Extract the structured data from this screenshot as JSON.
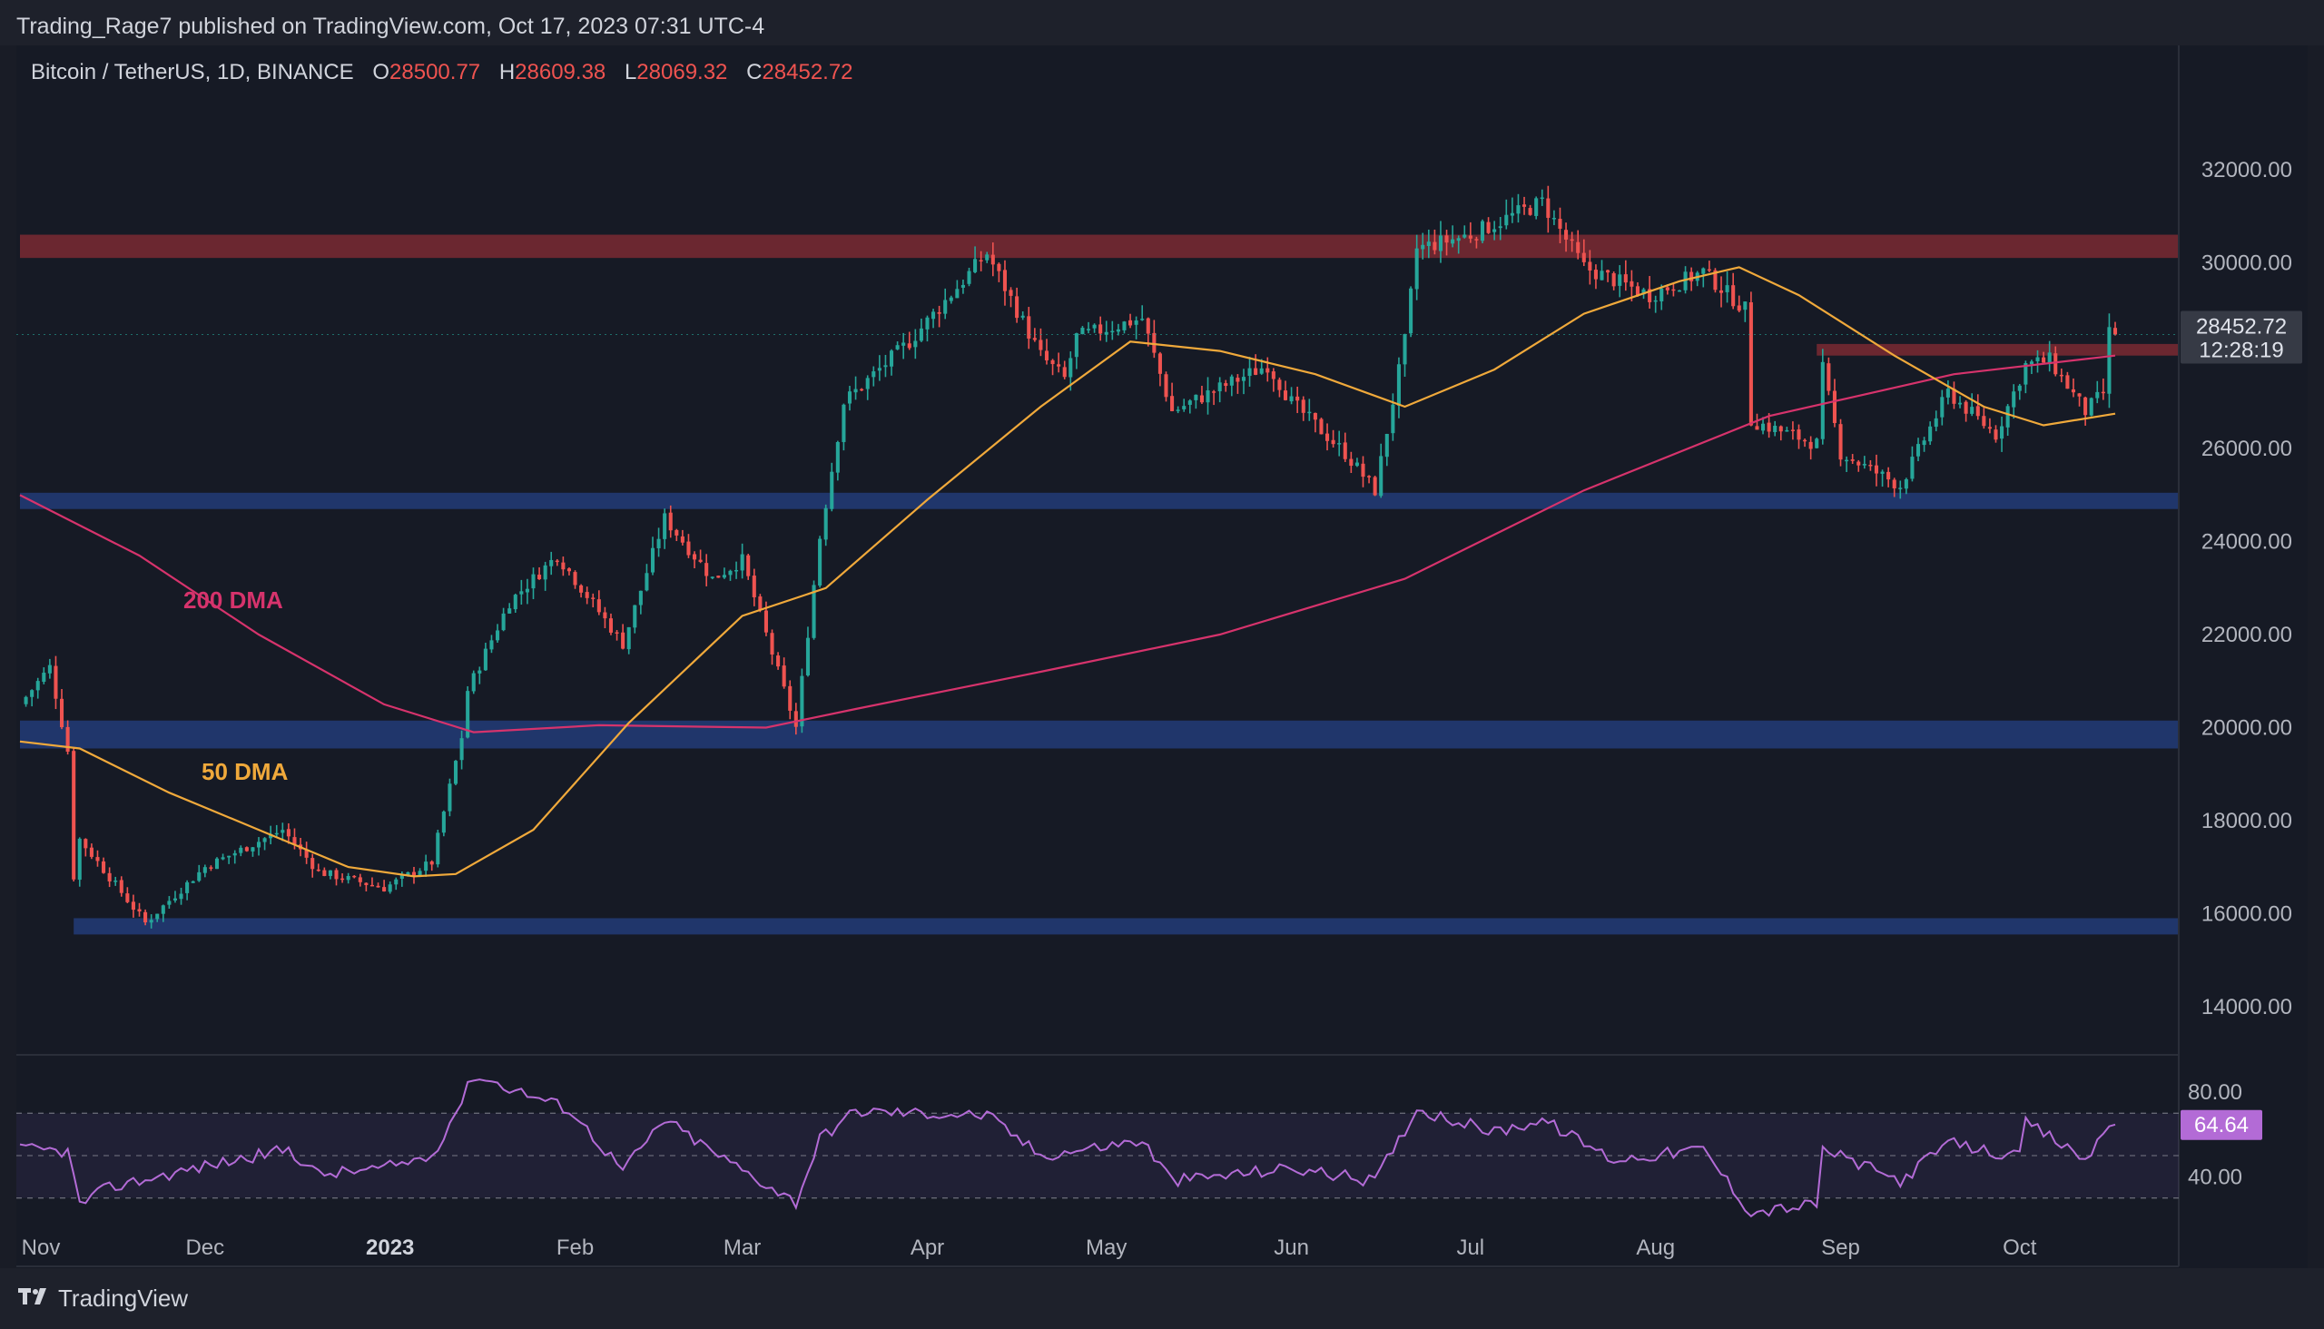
{
  "header": {
    "published": "Trading_Rage7 published on TradingView.com, Oct 17, 2023 07:31 UTC-4"
  },
  "symbol": {
    "name": "Bitcoin / TetherUS, 1D, BINANCE",
    "open_label": "O",
    "open": "28500.77",
    "high_label": "H",
    "high": "28609.38",
    "low_label": "L",
    "low": "28069.32",
    "close_label": "C",
    "close": "28452.72"
  },
  "price_tag": {
    "price": "28452.72",
    "countdown": "12:28:19"
  },
  "rsi_tag": {
    "value": "64.64"
  },
  "annotations": {
    "dma200": "200 DMA",
    "dma50": "50 DMA"
  },
  "footer": {
    "brand": "TradingView"
  },
  "colors": {
    "up": "#26a69a",
    "down": "#ef5350",
    "dma50": "#f0a93b",
    "dma200": "#d6336c",
    "rsi": "#b36bd6",
    "resistance": "#7a2a33",
    "support": "#213a73"
  },
  "chart_data": [
    {
      "type": "candlestick",
      "title": "Bitcoin / TetherUS, 1D, BINANCE",
      "x_range": [
        "2022-10-31",
        "2023-10-17"
      ],
      "ylim": [
        13000,
        33500
      ],
      "y_ticks": [
        "32000.00",
        "30000.00",
        "26000.00",
        "24000.00",
        "22000.00",
        "20000.00",
        "18000.00",
        "16000.00",
        "14000.00"
      ],
      "x_tick_labels": [
        {
          "label": "Nov",
          "date": "2022-11-01",
          "bold": false
        },
        {
          "label": "Dec",
          "date": "2022-12-01",
          "bold": false
        },
        {
          "label": "2023",
          "date": "2023-01-01",
          "bold": true
        },
        {
          "label": "Feb",
          "date": "2023-02-01",
          "bold": false
        },
        {
          "label": "Mar",
          "date": "2023-03-01",
          "bold": false
        },
        {
          "label": "Apr",
          "date": "2023-04-01",
          "bold": false
        },
        {
          "label": "May",
          "date": "2023-05-01",
          "bold": false
        },
        {
          "label": "Jun",
          "date": "2023-06-01",
          "bold": false
        },
        {
          "label": "Jul",
          "date": "2023-07-01",
          "bold": false
        },
        {
          "label": "Aug",
          "date": "2023-08-01",
          "bold": false
        },
        {
          "label": "Sep",
          "date": "2023-09-01",
          "bold": false
        },
        {
          "label": "Oct",
          "date": "2023-10-01",
          "bold": false
        }
      ],
      "zones": [
        {
          "kind": "resistance",
          "from": 30100,
          "to": 30600,
          "start": "2022-10-31"
        },
        {
          "kind": "resistance",
          "from": 28000,
          "to": 28250,
          "start": "2023-08-28"
        },
        {
          "kind": "support",
          "from": 24700,
          "to": 25050,
          "start": "2022-10-31"
        },
        {
          "kind": "support",
          "from": 19550,
          "to": 20150,
          "start": "2022-10-31"
        },
        {
          "kind": "support",
          "from": 15550,
          "to": 15900,
          "start": "2022-11-09"
        }
      ],
      "price_anchors": [
        [
          "2022-10-31",
          20500
        ],
        [
          "2022-11-05",
          21300
        ],
        [
          "2022-11-08",
          19500
        ],
        [
          "2022-11-09",
          16800
        ],
        [
          "2022-11-10",
          17600
        ],
        [
          "2022-11-21",
          15800
        ],
        [
          "2022-12-01",
          17000
        ],
        [
          "2022-12-14",
          17800
        ],
        [
          "2022-12-20",
          16900
        ],
        [
          "2022-12-31",
          16550
        ],
        [
          "2023-01-08",
          17100
        ],
        [
          "2023-01-13",
          19800
        ],
        [
          "2023-01-14",
          20800
        ],
        [
          "2023-01-21",
          22700
        ],
        [
          "2023-01-29",
          23700
        ],
        [
          "2023-02-09",
          21800
        ],
        [
          "2023-02-16",
          24500
        ],
        [
          "2023-02-24",
          23200
        ],
        [
          "2023-03-01",
          23600
        ],
        [
          "2023-03-10",
          20000
        ],
        [
          "2023-03-14",
          24100
        ],
        [
          "2023-03-18",
          27000
        ],
        [
          "2023-03-29",
          28300
        ],
        [
          "2023-04-11",
          30200
        ],
        [
          "2023-04-20",
          28000
        ],
        [
          "2023-04-24",
          27500
        ],
        [
          "2023-04-26",
          28400
        ],
        [
          "2023-05-07",
          28800
        ],
        [
          "2023-05-12",
          26800
        ],
        [
          "2023-05-28",
          27800
        ],
        [
          "2023-06-01",
          27000
        ],
        [
          "2023-06-10",
          25900
        ],
        [
          "2023-06-15",
          25100
        ],
        [
          "2023-06-20",
          28300
        ],
        [
          "2023-06-22",
          30300
        ],
        [
          "2023-07-01",
          30600
        ],
        [
          "2023-07-13",
          31300
        ],
        [
          "2023-07-20",
          29900
        ],
        [
          "2023-07-31",
          29300
        ],
        [
          "2023-08-09",
          29800
        ],
        [
          "2023-08-16",
          29000
        ],
        [
          "2023-08-17",
          26600
        ],
        [
          "2023-08-28",
          26100
        ],
        [
          "2023-08-29",
          27700
        ],
        [
          "2023-09-01",
          25900
        ],
        [
          "2023-09-11",
          25200
        ],
        [
          "2023-09-19",
          27200
        ],
        [
          "2023-09-27",
          26300
        ],
        [
          "2023-10-02",
          27800
        ],
        [
          "2023-10-06",
          27900
        ],
        [
          "2023-10-12",
          26800
        ],
        [
          "2023-10-15",
          27200
        ],
        [
          "2023-10-16",
          28500
        ],
        [
          "2023-10-17",
          28452.72
        ]
      ],
      "dma50": [
        [
          "2022-10-31",
          19700
        ],
        [
          "2022-11-10",
          19550
        ],
        [
          "2022-11-25",
          18600
        ],
        [
          "2022-12-10",
          17800
        ],
        [
          "2022-12-25",
          17000
        ],
        [
          "2023-01-05",
          16800
        ],
        [
          "2023-01-12",
          16850
        ],
        [
          "2023-01-25",
          17800
        ],
        [
          "2023-02-10",
          20100
        ],
        [
          "2023-03-01",
          22400
        ],
        [
          "2023-03-15",
          23000
        ],
        [
          "2023-04-01",
          24900
        ],
        [
          "2023-04-20",
          26900
        ],
        [
          "2023-05-05",
          28300
        ],
        [
          "2023-05-20",
          28100
        ],
        [
          "2023-06-05",
          27600
        ],
        [
          "2023-06-20",
          26900
        ],
        [
          "2023-07-05",
          27700
        ],
        [
          "2023-07-20",
          28900
        ],
        [
          "2023-08-05",
          29600
        ],
        [
          "2023-08-15",
          29900
        ],
        [
          "2023-08-25",
          29300
        ],
        [
          "2023-09-10",
          28000
        ],
        [
          "2023-09-25",
          26900
        ],
        [
          "2023-10-05",
          26500
        ],
        [
          "2023-10-17",
          26750
        ]
      ],
      "dma200": [
        [
          "2022-10-31",
          25000
        ],
        [
          "2022-11-20",
          23700
        ],
        [
          "2022-12-10",
          22000
        ],
        [
          "2022-12-31",
          20500
        ],
        [
          "2023-01-15",
          19900
        ],
        [
          "2023-02-05",
          20050
        ],
        [
          "2023-03-05",
          20000
        ],
        [
          "2023-03-20",
          20400
        ],
        [
          "2023-04-20",
          21200
        ],
        [
          "2023-05-20",
          22000
        ],
        [
          "2023-06-20",
          23200
        ],
        [
          "2023-07-20",
          25100
        ],
        [
          "2023-08-20",
          26700
        ],
        [
          "2023-09-20",
          27600
        ],
        [
          "2023-10-17",
          28000
        ]
      ]
    },
    {
      "type": "line",
      "title": "RSI",
      "ylim": [
        20,
        95
      ],
      "y_ticks": [
        "80.00",
        "40.00"
      ],
      "bands": [
        70,
        50,
        30
      ],
      "series": [
        {
          "values": [
            [
              "2022-10-31",
              53
            ],
            [
              "2022-11-08",
              52
            ],
            [
              "2022-11-10",
              27
            ],
            [
              "2022-11-15",
              35
            ],
            [
              "2022-12-01",
              45
            ],
            [
              "2022-12-15",
              53
            ],
            [
              "2022-12-20",
              41
            ],
            [
              "2022-12-31",
              44
            ],
            [
              "2023-01-08",
              50
            ],
            [
              "2023-01-13",
              76
            ],
            [
              "2023-01-15",
              88
            ],
            [
              "2023-01-31",
              72
            ],
            [
              "2023-02-09",
              43
            ],
            [
              "2023-02-16",
              67
            ],
            [
              "2023-02-25",
              50
            ],
            [
              "2023-03-10",
              28
            ],
            [
              "2023-03-14",
              58
            ],
            [
              "2023-03-20",
              71
            ],
            [
              "2023-04-11",
              69
            ],
            [
              "2023-04-20",
              50
            ],
            [
              "2023-05-07",
              57
            ],
            [
              "2023-05-12",
              38
            ],
            [
              "2023-06-01",
              44
            ],
            [
              "2023-06-15",
              38
            ],
            [
              "2023-06-22",
              72
            ],
            [
              "2023-07-05",
              61
            ],
            [
              "2023-07-13",
              67
            ],
            [
              "2023-07-25",
              48
            ],
            [
              "2023-08-09",
              53
            ],
            [
              "2023-08-17",
              23
            ],
            [
              "2023-08-28",
              27
            ],
            [
              "2023-08-29",
              53
            ],
            [
              "2023-09-11",
              38
            ],
            [
              "2023-09-19",
              56
            ],
            [
              "2023-10-01",
              49
            ],
            [
              "2023-10-02",
              66
            ],
            [
              "2023-10-12",
              48
            ],
            [
              "2023-10-16",
              64
            ],
            [
              "2023-10-17",
              64.64
            ]
          ]
        }
      ]
    }
  ]
}
